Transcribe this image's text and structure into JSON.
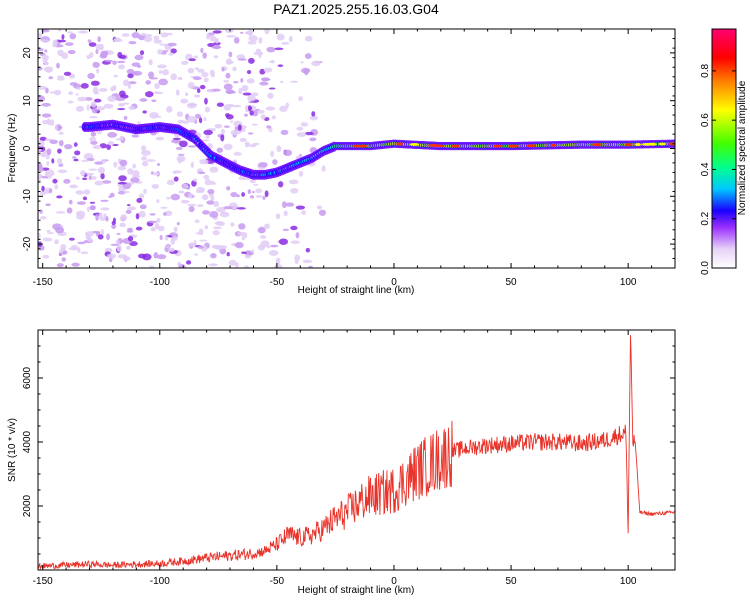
{
  "title": "PAZ1.2025.255.16.03.G04",
  "colorbar": {
    "label": "Normalized spectral amplitude",
    "ticks": [
      "0.0",
      "0.2",
      "0.4",
      "0.6",
      "0.8"
    ],
    "tick_values": [
      0.0,
      0.2,
      0.4,
      0.6,
      0.8
    ],
    "range": [
      0.0,
      0.97
    ],
    "colors": [
      "#ffffff",
      "#d8b8f0",
      "#9b30ff",
      "#1a00ff",
      "#00c8ff",
      "#00ff90",
      "#40ff00",
      "#ffff00",
      "#ff8000",
      "#ff0000",
      "#ff0070"
    ]
  },
  "chart_data": [
    {
      "type": "heatmap",
      "title": "PAZ1.2025.255.16.03.G04",
      "xlabel": "Height of straight line (km)",
      "ylabel": "Frequency (Hz)",
      "xlim": [
        -152,
        120
      ],
      "ylim": [
        -25,
        25
      ],
      "xticks": [
        -150,
        -100,
        -50,
        0,
        50,
        100
      ],
      "xtick_labels": [
        "-150",
        "-100",
        "-50",
        "0",
        "50",
        "100"
      ],
      "yticks": [
        -20,
        -10,
        0,
        10,
        20
      ],
      "ytick_labels": [
        "-20",
        "-10",
        "0",
        "10",
        "20"
      ],
      "ridge": {
        "x": [
          -130,
          -120,
          -110,
          -100,
          -92,
          -85,
          -78,
          -72,
          -66,
          -60,
          -55,
          -50,
          -45,
          -40,
          -35,
          -30,
          -25,
          -20,
          -10,
          0,
          20,
          50,
          80,
          100,
          120
        ],
        "y": [
          4.5,
          5,
          4,
          4.5,
          4,
          2,
          -1.5,
          -3,
          -4.5,
          -5.5,
          -5.5,
          -5,
          -4,
          -3,
          -2,
          -0.5,
          0.5,
          0.5,
          0.5,
          1,
          0.5,
          0.5,
          0.8,
          0.8,
          1
        ],
        "amplitude": [
          0.22,
          0.2,
          0.2,
          0.22,
          0.25,
          0.3,
          0.28,
          0.25,
          0.22,
          0.3,
          0.3,
          0.28,
          0.3,
          0.32,
          0.35,
          0.38,
          0.42,
          0.5,
          0.55,
          0.6,
          0.6,
          0.55,
          0.6,
          0.6,
          0.55
        ]
      },
      "colorbar_label": "Normalized spectral amplitude"
    },
    {
      "type": "line",
      "xlabel": "Height of straight line (km)",
      "ylabel": "SNR (10 * v/v)",
      "xlim": [
        -152,
        120
      ],
      "ylim": [
        0,
        7500
      ],
      "xticks": [
        -150,
        -100,
        -50,
        0,
        50,
        100
      ],
      "xtick_labels": [
        "-150",
        "-100",
        "-50",
        "0",
        "50",
        "100"
      ],
      "yticks": [
        2000,
        4000,
        6000
      ],
      "ytick_labels": [
        "2000",
        "4000",
        "6000"
      ],
      "series": [
        {
          "name": "SNR",
          "color": "#e8332a",
          "x": [
            -152,
            -140,
            -130,
            -120,
            -110,
            -100,
            -90,
            -80,
            -70,
            -60,
            -55,
            -50,
            -45,
            -40,
            -35,
            -30,
            -25,
            -20,
            -15,
            -10,
            -5,
            0,
            5,
            10,
            15,
            20,
            25,
            30,
            40,
            50,
            60,
            70,
            80,
            90,
            95,
            99,
            100,
            101,
            102,
            103,
            105,
            110,
            120
          ],
          "y": [
            120,
            150,
            180,
            150,
            180,
            200,
            280,
            380,
            450,
            520,
            600,
            800,
            1100,
            1000,
            1100,
            1300,
            1600,
            1800,
            2100,
            2300,
            2400,
            2500,
            2800,
            3100,
            3300,
            3500,
            3700,
            3800,
            3900,
            3950,
            4000,
            4000,
            3950,
            4050,
            4200,
            4300,
            1200,
            7500,
            4000,
            4000,
            1800,
            1750,
            1800
          ]
        }
      ]
    }
  ]
}
